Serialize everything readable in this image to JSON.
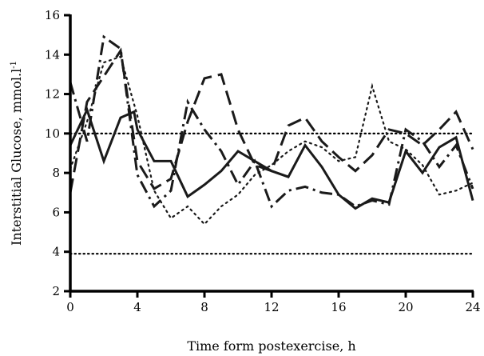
{
  "chart_data": {
    "type": "line",
    "title": "",
    "xlabel": "Time form postexercise,  h",
    "ylabel": "Interstitial Glucose, mmol.l",
    "ylabel_superscript": "-1",
    "xlim": [
      0,
      24
    ],
    "ylim": [
      2,
      16
    ],
    "xticks": [
      "0",
      "4",
      "8",
      "12",
      "16",
      "20",
      "24"
    ],
    "yticks": [
      "2",
      "4",
      "6",
      "8",
      "10",
      "12",
      "14",
      "16"
    ],
    "reference_lines": [
      {
        "y": 10,
        "style": "dotted"
      },
      {
        "y": 3.9,
        "style": "dotted"
      }
    ],
    "grid": false,
    "series": [
      {
        "style": "solid",
        "color": "#1a1a1a",
        "x": [
          0,
          1,
          2,
          3,
          3.8,
          4,
          5,
          6,
          7,
          8,
          9,
          10,
          11,
          12,
          13,
          14,
          15,
          16,
          17,
          18,
          19,
          20,
          21,
          22,
          23,
          24
        ],
        "y": [
          9.4,
          11.2,
          8.6,
          10.8,
          11.1,
          10.2,
          8.6,
          8.6,
          6.8,
          7.4,
          8.1,
          9.1,
          8.6,
          8.1,
          7.8,
          9.4,
          8.3,
          6.9,
          6.2,
          6.7,
          6.5,
          9.1,
          8.0,
          9.3,
          9.8,
          6.6
        ]
      },
      {
        "style": "dashed",
        "color": "#1a1a1a",
        "x": [
          0,
          1,
          2,
          3,
          4,
          5,
          6,
          7,
          8,
          9,
          10,
          11,
          12,
          13,
          14,
          15,
          16,
          17,
          18,
          19,
          20,
          21,
          22,
          23,
          24
        ],
        "y": [
          7.0,
          11.6,
          12.9,
          14.2,
          8.6,
          7.2,
          7.7,
          10.6,
          12.8,
          13.0,
          10.2,
          8.4,
          8.1,
          10.4,
          10.8,
          9.6,
          8.8,
          8.1,
          8.9,
          10.2,
          10.0,
          9.4,
          10.2,
          11.1,
          9.2
        ]
      },
      {
        "style": "dashdot",
        "color": "#1a1a1a",
        "x": [
          0,
          1,
          2,
          3,
          4,
          5,
          6,
          7,
          8,
          9,
          10,
          11,
          12,
          13,
          14,
          15,
          16,
          17,
          18,
          19,
          20,
          21,
          22,
          23,
          24
        ],
        "y": [
          12.6,
          9.6,
          14.9,
          14.3,
          7.9,
          6.3,
          7.1,
          11.6,
          10.2,
          9.1,
          7.4,
          8.6,
          6.3,
          7.1,
          7.3,
          7.0,
          6.9,
          6.3,
          6.6,
          6.4,
          10.2,
          9.6,
          8.3,
          9.4,
          7.2
        ]
      },
      {
        "style": "dotted",
        "color": "#1a1a1a",
        "x": [
          0,
          1,
          2,
          3,
          4,
          5,
          6,
          7,
          8,
          9,
          10,
          11,
          12,
          13,
          14,
          15,
          16,
          17,
          18,
          19,
          20,
          21,
          22,
          23,
          24
        ],
        "y": [
          8.2,
          10.6,
          13.6,
          13.9,
          10.9,
          7.1,
          5.7,
          6.3,
          5.4,
          6.3,
          6.9,
          7.9,
          8.4,
          9.1,
          9.6,
          9.3,
          8.6,
          8.8,
          12.4,
          9.6,
          9.2,
          8.4,
          6.9,
          7.1,
          7.5
        ]
      }
    ]
  }
}
